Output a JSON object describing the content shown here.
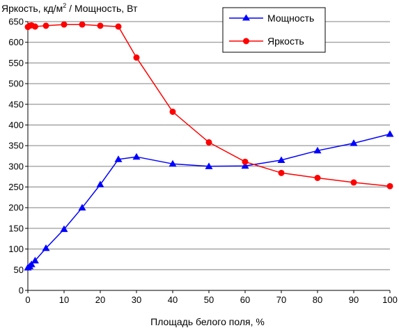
{
  "chart_data": {
    "type": "line",
    "title": "",
    "ylabel": "Яркость, кд/м² / Мощность, Вт",
    "ylabel_parts": {
      "prefix": "Яркость, кд/м",
      "superscript": "2",
      "suffix": " / Мощность, Вт"
    },
    "xlabel": "Площадь белого поля, %",
    "xlim": [
      0,
      100
    ],
    "ylim": [
      0,
      650
    ],
    "x_ticks": [
      0,
      10,
      20,
      30,
      40,
      50,
      60,
      70,
      80,
      90,
      100
    ],
    "y_ticks": [
      0,
      50,
      100,
      150,
      200,
      250,
      300,
      350,
      400,
      450,
      500,
      550,
      600,
      650
    ],
    "grid": "horizontal",
    "legend_position": "top-right",
    "series": [
      {
        "name": "Мощность",
        "color": "#0000ff",
        "marker": "triangle",
        "x": [
          0,
          0.5,
          1,
          2,
          5,
          10,
          15,
          20,
          25,
          30,
          40,
          50,
          60,
          70,
          80,
          90,
          100
        ],
        "y": [
          55,
          58,
          63,
          72,
          102,
          148,
          200,
          256,
          317,
          323,
          306,
          300,
          301,
          315,
          338,
          356,
          378
        ]
      },
      {
        "name": "Яркость",
        "color": "#ff0000",
        "marker": "circle",
        "x": [
          0,
          0.5,
          1,
          2,
          5,
          10,
          15,
          20,
          25,
          30,
          40,
          50,
          60,
          70,
          80,
          90,
          100
        ],
        "y": [
          637,
          640,
          641,
          638,
          640,
          643,
          643,
          640,
          638,
          563,
          432,
          358,
          311,
          284,
          272,
          261,
          252
        ]
      }
    ]
  }
}
